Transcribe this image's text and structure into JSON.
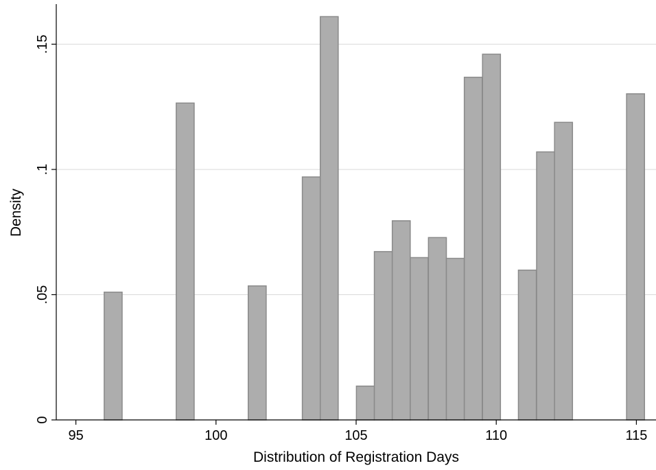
{
  "chart_data": {
    "type": "bar",
    "xlabel": "Distribution of Registration Days",
    "ylabel": "Density",
    "xlim": [
      94.3,
      115.7
    ],
    "ylim": [
      0,
      0.166
    ],
    "xticks": [
      95,
      100,
      105,
      110,
      115
    ],
    "xtick_labels": [
      "95",
      "100",
      "105",
      "110",
      "115"
    ],
    "yticks": [
      0,
      0.05,
      0.1,
      0.15
    ],
    "ytick_labels": [
      "0",
      ".05",
      ".1",
      ".15"
    ],
    "grid": true,
    "bar_width": 0.64,
    "bar_color": "#adadad",
    "bar_edge_color": "#8a8a8a",
    "x": [
      96.33,
      98.9,
      101.47,
      103.4,
      104.04,
      105.33,
      105.97,
      106.61,
      107.25,
      107.9,
      108.54,
      109.18,
      109.83,
      111.11,
      111.76,
      112.4,
      114.97
    ],
    "values": [
      0.051,
      0.1265,
      0.0535,
      0.097,
      0.161,
      0.0135,
      0.0672,
      0.0795,
      0.0648,
      0.0728,
      0.0645,
      0.1368,
      0.146,
      0.0598,
      0.107,
      0.1188,
      0.1302
    ]
  }
}
